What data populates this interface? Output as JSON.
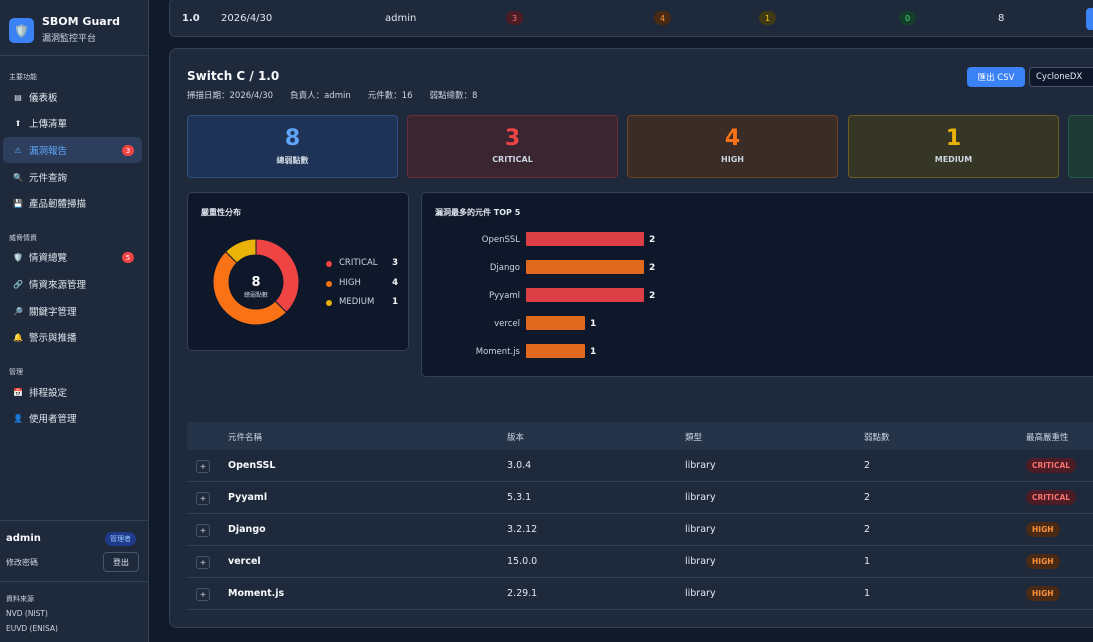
{
  "brand": {
    "title": "SBOM Guard",
    "subtitle": "漏洞監控平台",
    "logo_icon": "shield-icon"
  },
  "sidebar": {
    "sections": [
      {
        "title": "主要功能",
        "items": [
          {
            "label": "儀表板",
            "icon": "dashboard-icon"
          },
          {
            "label": "上傳清單",
            "icon": "upload-icon"
          },
          {
            "label": "漏洞報告",
            "icon": "warning-icon",
            "badge": "3",
            "active": true
          },
          {
            "label": "元件查詢",
            "icon": "search-icon"
          },
          {
            "label": "產品韌體掃描",
            "icon": "disk-icon"
          }
        ]
      },
      {
        "title": "威脅情資",
        "items": [
          {
            "label": "情資總覽",
            "icon": "shield-icon",
            "badge": "5"
          },
          {
            "label": "情資來源管理",
            "icon": "link-icon"
          },
          {
            "label": "關鍵字管理",
            "icon": "key-search-icon"
          },
          {
            "label": "警示與推播",
            "icon": "bell-icon"
          }
        ]
      },
      {
        "title": "管理",
        "items": [
          {
            "label": "排程設定",
            "icon": "calendar-icon"
          },
          {
            "label": "使用者管理",
            "icon": "user-icon"
          }
        ]
      }
    ]
  },
  "user": {
    "name": "admin",
    "role": "管理者",
    "change_password": "修改密碼",
    "logout": "登出"
  },
  "sources": {
    "title": "資料來源",
    "items": [
      "NVD (NIST)",
      "EUVD (ENISA)"
    ]
  },
  "top_row": {
    "version": "1.0",
    "date": "2026/4/30",
    "owner": "admin",
    "critical": "3",
    "high": "4",
    "medium": "1",
    "low": "0",
    "total": "8"
  },
  "report": {
    "title": "Switch C / 1.0",
    "meta": "掃描日期：2026/4/30　　負責人：admin　　元件數：16　　弱點總數：8",
    "export_label": "匯出 CSV",
    "format_value": "CycloneDX"
  },
  "stats": [
    {
      "value": "8",
      "label": "總弱點數",
      "color": "#60a5fa"
    },
    {
      "value": "3",
      "label": "CRITICAL",
      "color": "#ef4444"
    },
    {
      "value": "4",
      "label": "HIGH",
      "color": "#f97316"
    },
    {
      "value": "1",
      "label": "MEDIUM",
      "color": "#eab308"
    }
  ],
  "severity_distribution": {
    "title": "嚴重性分布",
    "center_value": "8",
    "center_label": "總弱點數",
    "items": [
      {
        "name": "CRITICAL",
        "value": 3,
        "color": "#ef4444"
      },
      {
        "name": "HIGH",
        "value": 4,
        "color": "#f97316"
      },
      {
        "name": "MEDIUM",
        "value": 1,
        "color": "#eab308"
      }
    ]
  },
  "chart_data": {
    "type": "bar",
    "title": "漏洞最多的元件 TOP 5",
    "orientation": "horizontal",
    "categories": [
      "OpenSSL",
      "Django",
      "Pyyaml",
      "vercel",
      "Moment.js"
    ],
    "values": [
      2,
      2,
      2,
      1,
      1
    ],
    "colors": [
      "#dc3f45",
      "#e0681f",
      "#dc3f45",
      "#e0681f",
      "#e0681f"
    ],
    "xlim": [
      0,
      2
    ]
  },
  "table": {
    "headers": [
      "元件名稱",
      "版本",
      "類型",
      "弱點數",
      "最高嚴重性"
    ],
    "rows": [
      {
        "name": "OpenSSL",
        "version": "3.0.4",
        "type": "library",
        "count": "2",
        "severity": "CRITICAL"
      },
      {
        "name": "Pyyaml",
        "version": "5.3.1",
        "type": "library",
        "count": "2",
        "severity": "CRITICAL"
      },
      {
        "name": "Django",
        "version": "3.2.12",
        "type": "library",
        "count": "2",
        "severity": "HIGH"
      },
      {
        "name": "vercel",
        "version": "15.0.0",
        "type": "library",
        "count": "1",
        "severity": "HIGH"
      },
      {
        "name": "Moment.js",
        "version": "2.29.1",
        "type": "library",
        "count": "1",
        "severity": "HIGH"
      }
    ],
    "expand_label": "+"
  }
}
